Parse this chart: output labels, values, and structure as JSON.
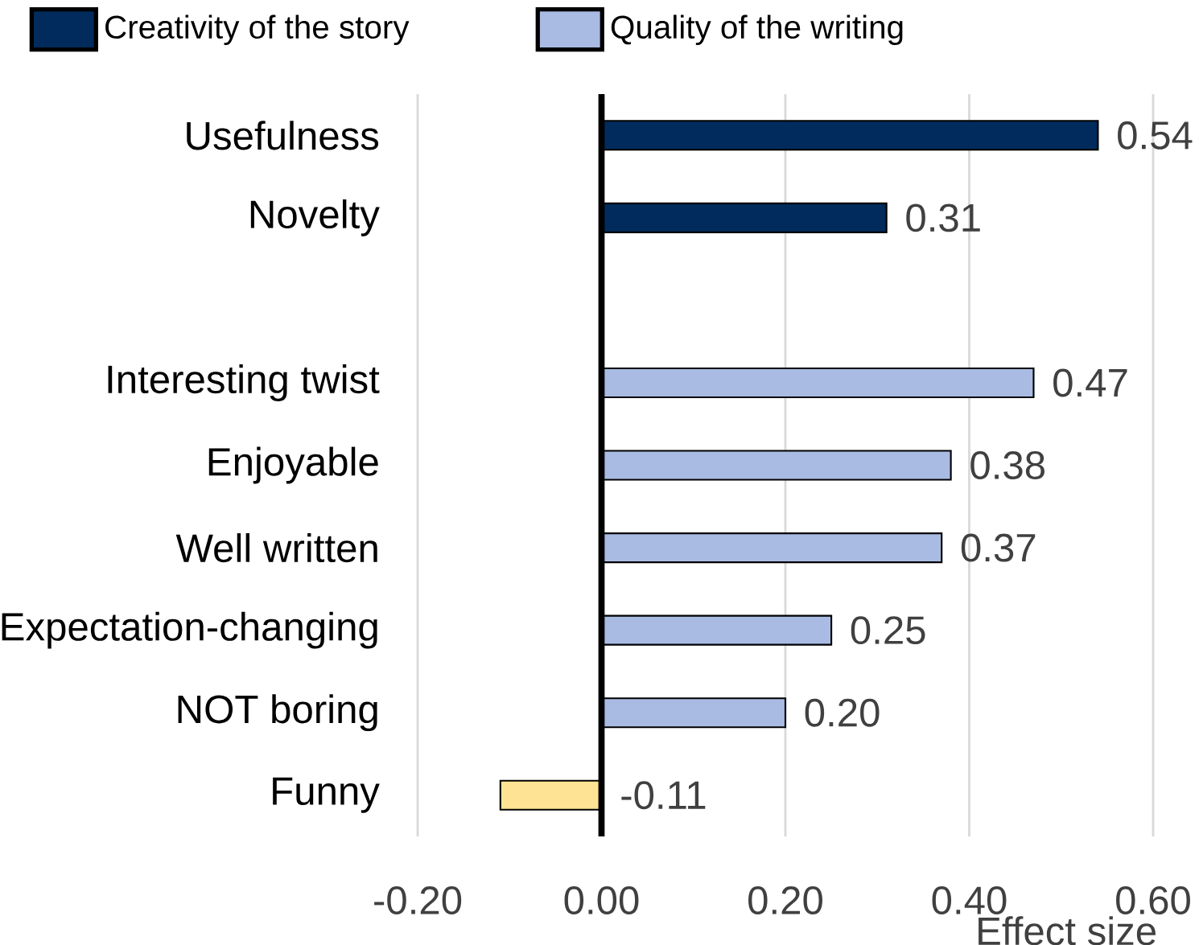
{
  "chart_data": {
    "type": "bar",
    "orientation": "horizontal",
    "categories": [
      "Usefulness",
      "Novelty",
      null,
      "Interesting twist",
      "Enjoyable",
      "Well written",
      "Expectation-changing",
      "NOT boring",
      "Funny"
    ],
    "series": [
      {
        "name": "Creativity of the story",
        "color": "#002b5c",
        "values": [
          0.54,
          0.31,
          null,
          null,
          null,
          null,
          null,
          null,
          null
        ],
        "value_labels": [
          "0.54",
          "0.31",
          null,
          null,
          null,
          null,
          null,
          null,
          null
        ]
      },
      {
        "name": "Quality of the writing",
        "color": "#a9bbe3",
        "colors": [
          null,
          null,
          null,
          "#a9bbe3",
          "#a9bbe3",
          "#a9bbe3",
          "#a9bbe3",
          "#a9bbe3",
          "#fde393"
        ],
        "values": [
          null,
          null,
          null,
          0.47,
          0.38,
          0.37,
          0.25,
          0.2,
          -0.11
        ],
        "value_labels": [
          null,
          null,
          null,
          "0.47",
          "0.38",
          "0.37",
          "0.25",
          "0.20",
          "-0.11"
        ]
      }
    ],
    "xlim": [
      -0.2,
      0.6
    ],
    "xticks": [
      {
        "value": -0.2,
        "label": "-0.20"
      },
      {
        "value": 0,
        "label": "0.00"
      },
      {
        "value": 0.2,
        "label": "0.20"
      },
      {
        "value": 0.4,
        "label": "0.40"
      },
      {
        "value": 0.6,
        "label": "0.60"
      }
    ],
    "xlabel": "Effect size",
    "ref_lines": [
      {
        "axis": "x",
        "value": 0,
        "color": "#000000"
      }
    ],
    "grid": "x",
    "legend": "top left"
  }
}
